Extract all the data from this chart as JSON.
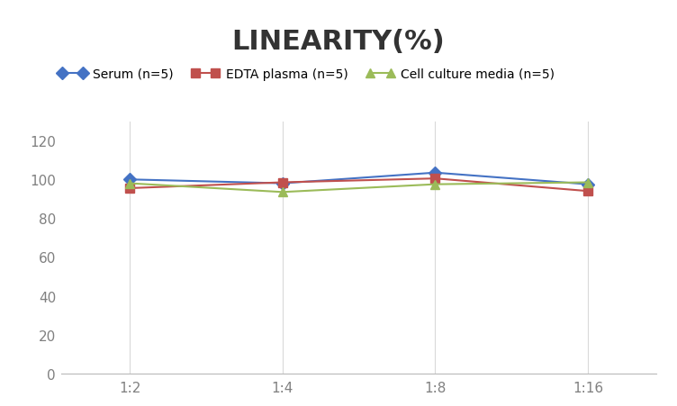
{
  "title": "LINEARITY(%)",
  "title_fontsize": 22,
  "title_fontweight": "bold",
  "x_labels": [
    "1:2",
    "1:4",
    "1:8",
    "1:16"
  ],
  "x_positions": [
    0,
    1,
    2,
    3
  ],
  "series": [
    {
      "label": "Serum (n=5)",
      "color": "#4472C4",
      "marker": "D",
      "values": [
        100.0,
        98.0,
        103.5,
        97.5
      ]
    },
    {
      "label": "EDTA plasma (n=5)",
      "color": "#C0504D",
      "marker": "s",
      "values": [
        95.5,
        98.5,
        100.5,
        94.0
      ]
    },
    {
      "label": "Cell culture media (n=5)",
      "color": "#9BBB59",
      "marker": "^",
      "values": [
        98.0,
        93.5,
        97.5,
        98.5
      ]
    }
  ],
  "ylim": [
    0,
    130
  ],
  "yticks": [
    0,
    20,
    40,
    60,
    80,
    100,
    120
  ],
  "grid_color": "#D9D9D9",
  "background_color": "#FFFFFF",
  "legend_fontsize": 10,
  "axis_fontsize": 11,
  "tick_color": "#808080"
}
